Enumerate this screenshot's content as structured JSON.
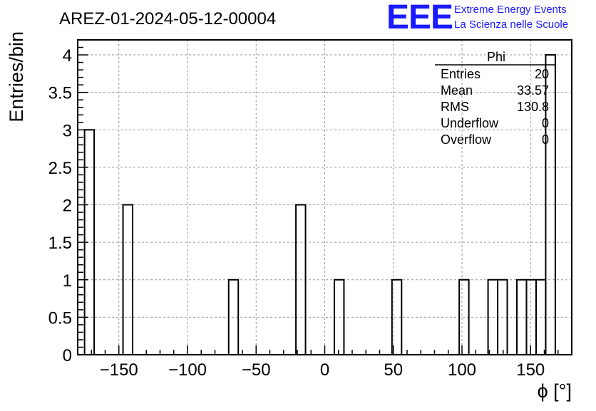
{
  "colors": {
    "logo": "#1a1aff",
    "axis": "#000000",
    "grid": "#9a9a9a",
    "bars": "#000000"
  },
  "header": {
    "run_title": "AREZ-01-2024-05-12-00004",
    "logo_text": "EEE",
    "logo_line1": "Extreme Energy Events",
    "logo_line2": "La Scienza nelle Scuole"
  },
  "stats_box": {
    "title": "Phi",
    "rows": [
      {
        "label": "Entries",
        "value": "20"
      },
      {
        "label": "Mean",
        "value": "33.57"
      },
      {
        "label": "RMS",
        "value": "130.8"
      },
      {
        "label": "Underflow",
        "value": "0"
      },
      {
        "label": "Overflow",
        "value": "0"
      }
    ]
  },
  "chart_data": {
    "type": "bar",
    "histogram": true,
    "title": "AREZ-01-2024-05-12-00004",
    "xlabel": "ϕ [°]",
    "ylabel": "Entries/bin",
    "xlim": [
      -180,
      180
    ],
    "ylim": [
      0,
      4.2
    ],
    "grid": true,
    "x_ticks": [
      -150,
      -100,
      -50,
      0,
      50,
      100,
      150
    ],
    "x_tick_labels": [
      "−150",
      "−100",
      "−50",
      "0",
      "50",
      "100",
      "150"
    ],
    "y_ticks": [
      0,
      0.5,
      1,
      1.5,
      2,
      2.5,
      3,
      3.5,
      4
    ],
    "y_tick_labels": [
      "0",
      "0.5",
      "1",
      "1.5",
      "2",
      "2.5",
      "3",
      "3.5",
      "4"
    ],
    "bin_width": 7,
    "bins": [
      {
        "x0": -175,
        "x1": -168,
        "value": 3
      },
      {
        "x0": -147,
        "x1": -140,
        "value": 2
      },
      {
        "x0": -70,
        "x1": -63,
        "value": 1
      },
      {
        "x0": -21,
        "x1": -14,
        "value": 2
      },
      {
        "x0": 7,
        "x1": 14,
        "value": 1
      },
      {
        "x0": 49,
        "x1": 56,
        "value": 1
      },
      {
        "x0": 98,
        "x1": 105,
        "value": 1
      },
      {
        "x0": 119,
        "x1": 126,
        "value": 1
      },
      {
        "x0": 126,
        "x1": 133,
        "value": 1
      },
      {
        "x0": 140,
        "x1": 147,
        "value": 1
      },
      {
        "x0": 147,
        "x1": 154,
        "value": 1
      },
      {
        "x0": 154,
        "x1": 161,
        "value": 1
      },
      {
        "x0": 161,
        "x1": 168,
        "value": 4
      }
    ]
  }
}
